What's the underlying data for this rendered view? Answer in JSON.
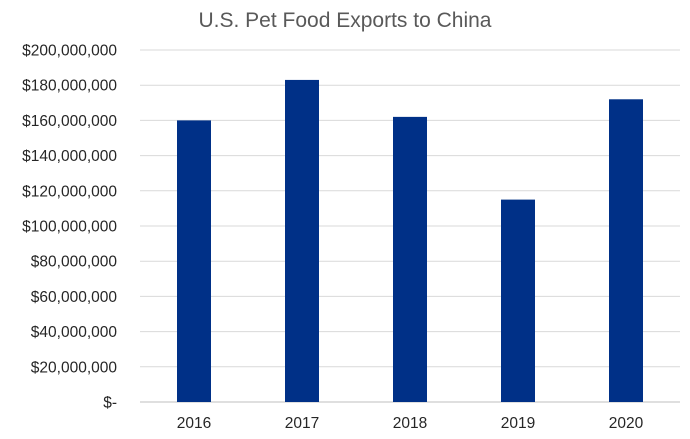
{
  "chart_data": {
    "type": "bar",
    "title": "U.S. Pet Food Exports to China",
    "categories": [
      "2016",
      "2017",
      "2018",
      "2019",
      "2020"
    ],
    "values": [
      160000000,
      183000000,
      162000000,
      115000000,
      172000000
    ],
    "ylim": [
      0,
      200000000
    ],
    "y_ticks": [
      0,
      20000000,
      40000000,
      60000000,
      80000000,
      100000000,
      120000000,
      140000000,
      160000000,
      180000000,
      200000000
    ],
    "y_tick_labels": [
      "$-",
      "$20,000,000",
      "$40,000,000",
      "$60,000,000",
      "$80,000,000",
      "$100,000,000",
      "$120,000,000",
      "$140,000,000",
      "$160,000,000",
      "$180,000,000",
      "$200,000,000"
    ],
    "xlabel": "",
    "ylabel": "",
    "grid": true,
    "legend": "none",
    "bar_color": "#003087"
  }
}
